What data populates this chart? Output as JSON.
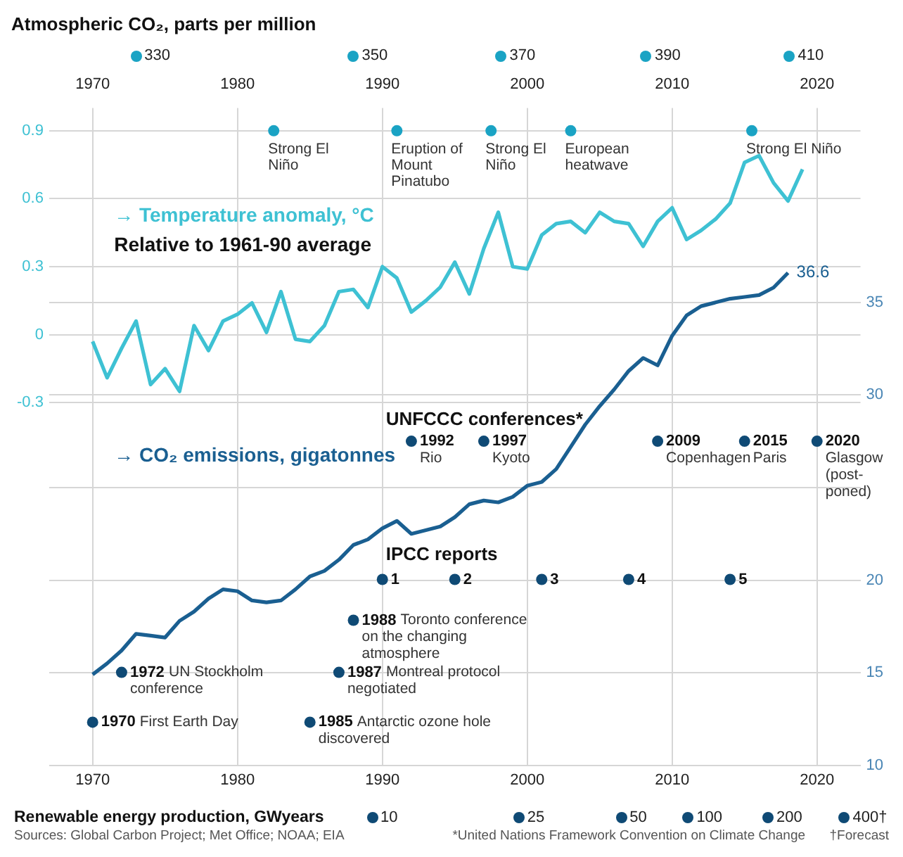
{
  "chart_data": {
    "type": "line",
    "title": "Atmospheric CO₂, parts per million",
    "xlim": [
      1967,
      2023
    ],
    "xticks": [
      1970,
      1980,
      1990,
      2000,
      2010,
      2020
    ],
    "x2lim": [
      1967,
      2023
    ],
    "x2ticks": [
      1970,
      1980,
      1990,
      2000,
      2010,
      2020
    ],
    "ylim": [
      -1.9,
      1.0
    ],
    "yticks": [
      -0.3,
      0,
      0.3,
      0.6,
      0.9
    ],
    "y2lim": [
      10,
      45.5
    ],
    "y2ticks": [
      10,
      15,
      20,
      {
        "value": 25,
        "label": null
      },
      30,
      35
    ],
    "grid": true,
    "legend": false,
    "marker": "none",
    "line_style": "solid",
    "series": [
      {
        "name": "→ Temperature anomaly, °C",
        "color": "#3ec1d3",
        "x": [
          1970,
          1971,
          1972,
          1973,
          1974,
          1975,
          1976,
          1977,
          1978,
          1979,
          1980,
          1981,
          1982,
          1983,
          1984,
          1985,
          1986,
          1987,
          1988,
          1989,
          1990,
          1991,
          1992,
          1993,
          1994,
          1995,
          1996,
          1997,
          1998,
          1999,
          2000,
          2001,
          2002,
          2003,
          2004,
          2005,
          2006,
          2007,
          2008,
          2009,
          2010,
          2011,
          2012,
          2013,
          2014,
          2015,
          2016,
          2017,
          2018,
          2019
        ],
        "values": [
          -0.03,
          -0.19,
          -0.06,
          0.06,
          -0.22,
          -0.15,
          -0.25,
          0.04,
          -0.07,
          0.06,
          0.09,
          0.14,
          0.01,
          0.19,
          -0.02,
          -0.03,
          0.04,
          0.19,
          0.2,
          0.12,
          0.3,
          0.25,
          0.1,
          0.15,
          0.21,
          0.32,
          0.18,
          0.38,
          0.54,
          0.3,
          0.29,
          0.44,
          0.49,
          0.5,
          0.45,
          0.54,
          0.5,
          0.49,
          0.39,
          0.5,
          0.56,
          0.42,
          0.46,
          0.51,
          0.58,
          0.76,
          0.79,
          0.67,
          0.59,
          0.73
        ]
      },
      {
        "name": "→ CO₂ emissions, gigatonnes",
        "color": "#1a5f91",
        "axis": "y2",
        "x": [
          1970,
          1971,
          1972,
          1973,
          1974,
          1975,
          1976,
          1977,
          1978,
          1979,
          1980,
          1981,
          1982,
          1983,
          1984,
          1985,
          1986,
          1987,
          1988,
          1989,
          1990,
          1991,
          1992,
          1993,
          1994,
          1995,
          1996,
          1997,
          1998,
          1999,
          2000,
          2001,
          2002,
          2003,
          2004,
          2005,
          2006,
          2007,
          2008,
          2009,
          2010,
          2011,
          2012,
          2013,
          2014,
          2015,
          2016,
          2017,
          2018
        ],
        "values": [
          14.9,
          15.5,
          16.2,
          17.1,
          17.0,
          16.9,
          17.8,
          18.3,
          19.0,
          19.5,
          19.4,
          18.9,
          18.8,
          18.9,
          19.5,
          20.2,
          20.5,
          21.1,
          21.9,
          22.2,
          22.8,
          23.2,
          22.5,
          22.7,
          22.9,
          23.4,
          24.1,
          24.3,
          24.2,
          24.5,
          25.1,
          25.3,
          26.0,
          27.2,
          28.4,
          29.4,
          30.3,
          31.3,
          32.0,
          31.6,
          33.2,
          34.3,
          34.8,
          35.0,
          35.2,
          35.3,
          35.4,
          35.8,
          36.6
        ],
        "value_labels": [
          null,
          null,
          null,
          null,
          null,
          null,
          null,
          null,
          null,
          null,
          null,
          null,
          null,
          null,
          null,
          null,
          null,
          null,
          null,
          null,
          null,
          null,
          null,
          null,
          null,
          null,
          null,
          null,
          null,
          null,
          null,
          null,
          null,
          null,
          null,
          null,
          null,
          null,
          null,
          null,
          null,
          null,
          null,
          null,
          null,
          null,
          null,
          null,
          "36.6"
        ]
      }
    ],
    "annotations": [
      "Relative to 1961-90 average",
      "UNFCCC conferences*",
      "IPCC reports",
      "Sources: Global Carbon Project; Met Office; NOAA; EIA",
      "*United Nations Framework Convention on Climate Change",
      "†Forecast",
      "Renewable energy production, GWyears",
      "330",
      "350",
      "370",
      "390",
      "410",
      "10",
      "25",
      "50",
      "100",
      "200",
      "400†",
      {
        "text": "Strong El Niño",
        "x": 1982.5,
        "y": 0.9
      },
      {
        "text": "Eruption of Mount Pinatubo",
        "x": 1991,
        "y": 0.9
      },
      {
        "text": "Strong El Niño",
        "x": 1997.5,
        "y": 0.9
      },
      {
        "text": "European heatwave",
        "x": 2003,
        "y": 0.9
      },
      {
        "text": "Strong El Niño",
        "x": 2015.5,
        "y": 0.9
      },
      {
        "text": "1992 Rio",
        "x": 1992,
        "y": -0.47
      },
      {
        "text": "1997 Kyoto",
        "x": 1997,
        "y": -0.47
      },
      {
        "text": "2009 Copenhagen",
        "x": 2009,
        "y": -0.47
      },
      {
        "text": "2015 Paris",
        "x": 2015,
        "y": -0.47
      },
      {
        "text": "2020 Glasgow (post-poned)",
        "x": 2020,
        "y": -0.47
      },
      {
        "text": "1",
        "x": 1990,
        "y": -1.08
      },
      {
        "text": "2",
        "x": 1995,
        "y": -1.08
      },
      {
        "text": "3",
        "x": 2001,
        "y": -1.08
      },
      {
        "text": "4",
        "x": 2007,
        "y": -1.08
      },
      {
        "text": "5",
        "x": 2014,
        "y": -1.08
      },
      {
        "text": "1988 Toronto conference on the changing atmosphere",
        "x": 1988,
        "y": -1.26
      },
      {
        "text": "1972 UN Stockholm conference",
        "x": 1972,
        "y": -1.49
      },
      {
        "text": "1987 Montreal protocol negotiated",
        "x": 1987,
        "y": -1.49
      },
      {
        "text": "1970 First Earth Day",
        "x": 1970,
        "y": -1.71
      },
      {
        "text": "1985 Antarctic ozone hole discovered",
        "x": 1985,
        "y": -1.71
      }
    ]
  }
}
